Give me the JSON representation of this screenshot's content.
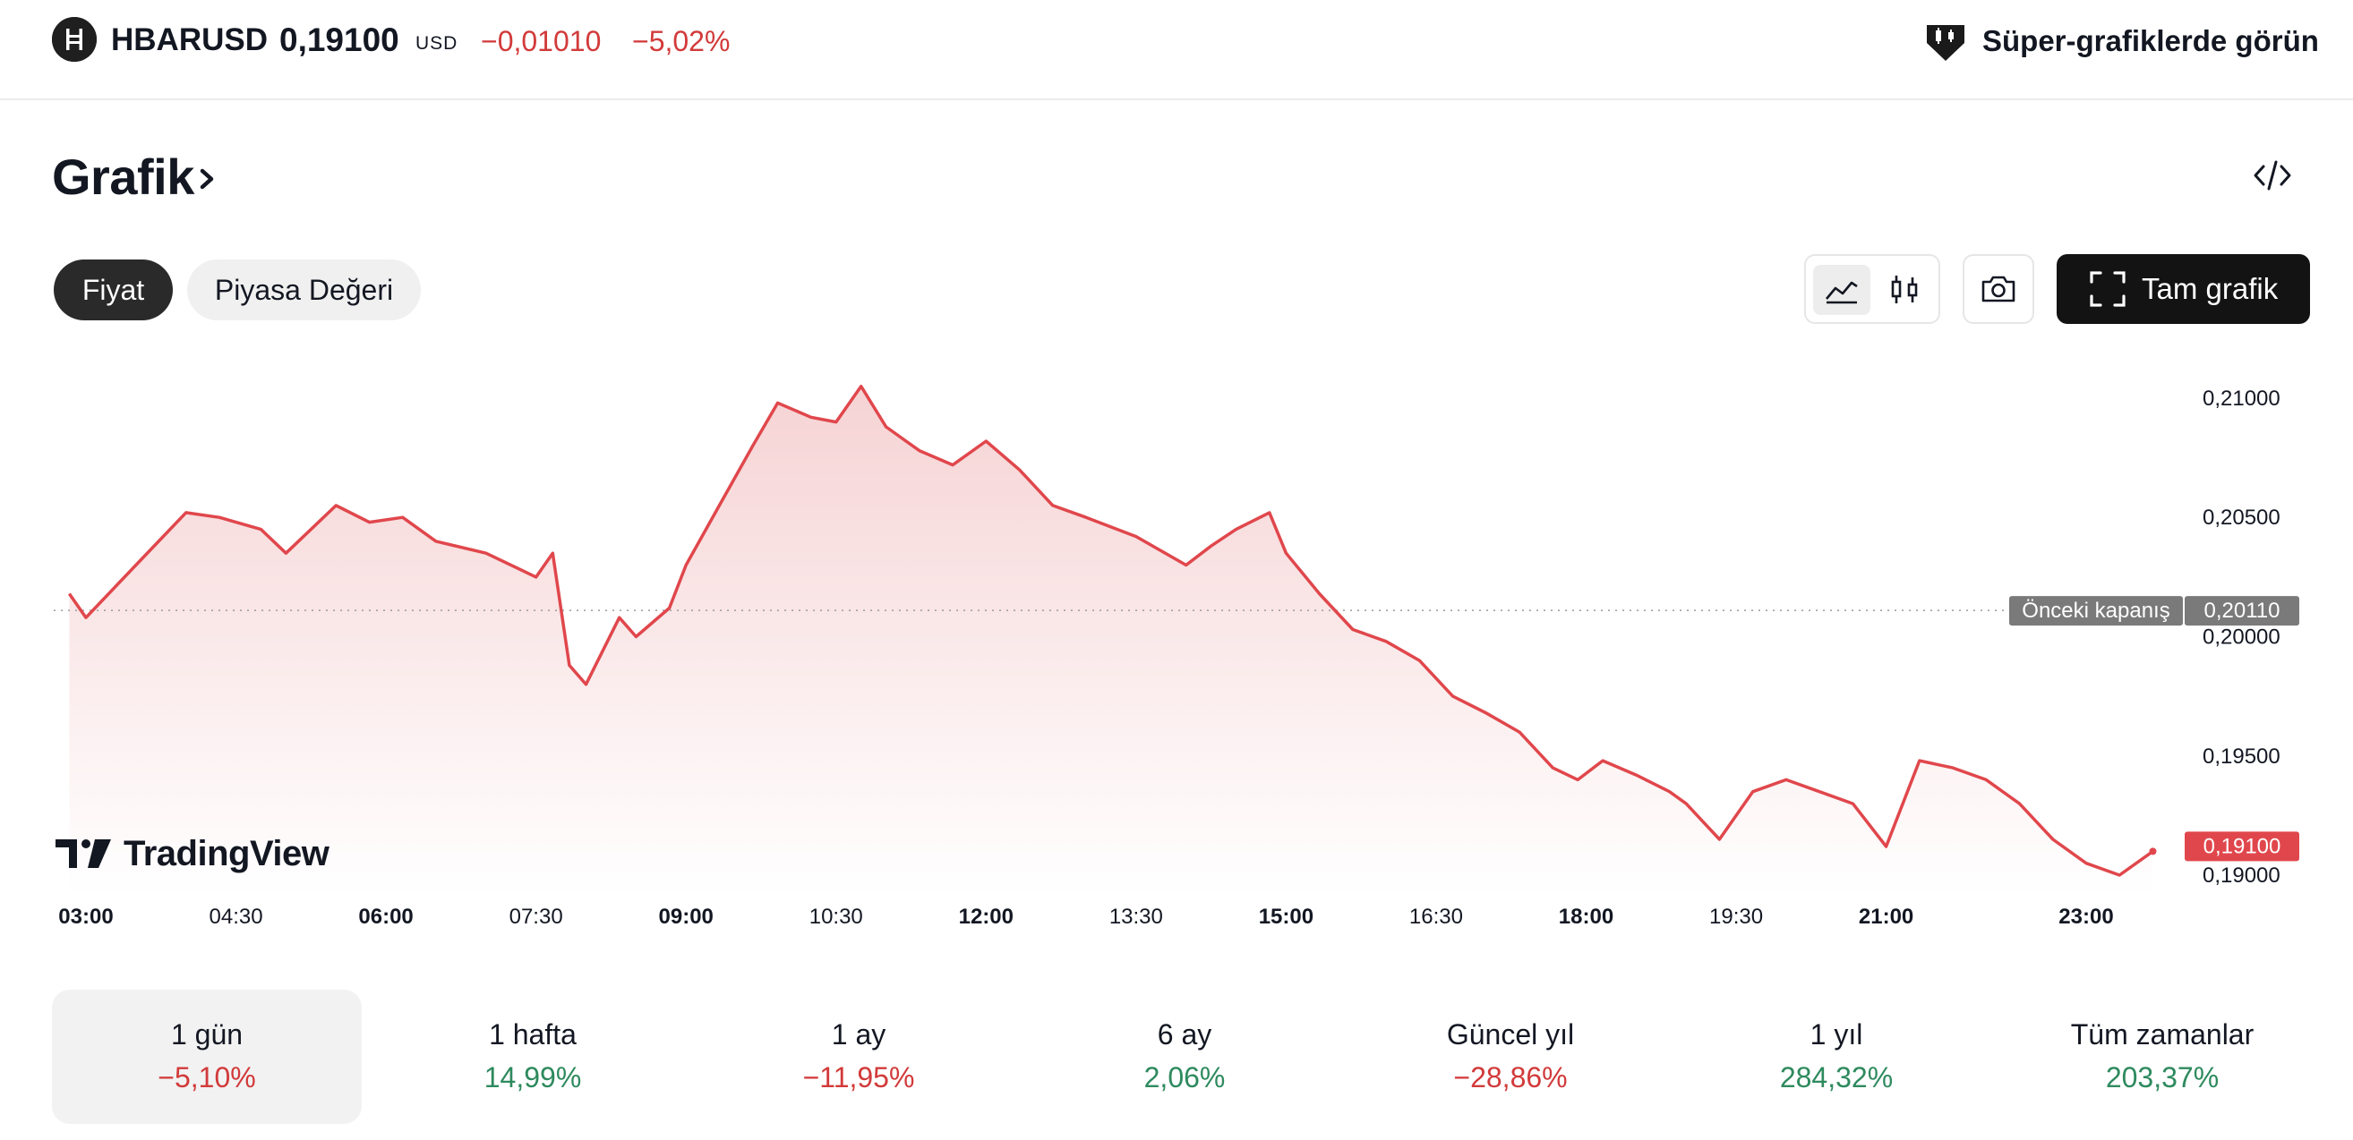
{
  "header": {
    "symbol": "HBARUSD",
    "price": "0,19100",
    "unit": "USD",
    "change_abs": "−0,01010",
    "change_pct": "−5,02%",
    "super_charts_label": "Süper-grafiklerde görün",
    "icons": {
      "symbol": "hbar-logo-icon",
      "super_charts": "super-charts-icon"
    }
  },
  "section": {
    "title": "Grafik",
    "icons": [
      "chevron-right-icon",
      "embed-code-icon"
    ]
  },
  "chips": {
    "price": "Fiyat",
    "market_cap": "Piyasa Değeri",
    "active": "Fiyat"
  },
  "toolbar": {
    "full_chart_label": "Tam grafik",
    "icons": [
      "line-chart-icon",
      "candlestick-icon",
      "camera-icon",
      "fullscreen-icon"
    ],
    "active_chart_type": "line"
  },
  "chart": {
    "watermark": "TradingView",
    "prev_close_label": "Önceki kapanış",
    "prev_close_value": "0,20110",
    "last_value": "0,19100",
    "price_ticks": [
      "0,21000",
      "0,20500",
      "0,20000",
      "0,19500",
      "0,19000"
    ],
    "time_ticks": [
      {
        "label": "03:00",
        "major": true
      },
      {
        "label": "04:30",
        "major": false
      },
      {
        "label": "06:00",
        "major": true
      },
      {
        "label": "07:30",
        "major": false
      },
      {
        "label": "09:00",
        "major": true
      },
      {
        "label": "10:30",
        "major": false
      },
      {
        "label": "12:00",
        "major": true
      },
      {
        "label": "13:30",
        "major": false
      },
      {
        "label": "15:00",
        "major": true
      },
      {
        "label": "16:30",
        "major": false
      },
      {
        "label": "18:00",
        "major": true
      },
      {
        "label": "19:30",
        "major": false
      },
      {
        "label": "21:00",
        "major": true
      },
      {
        "label": "23:00",
        "major": true
      }
    ]
  },
  "chart_data": {
    "type": "area",
    "ylim": [
      0.1888,
      0.2115
    ],
    "reference_line": 0.2011,
    "x": [
      "02:50",
      "03:00",
      "03:30",
      "04:00",
      "04:20",
      "04:45",
      "05:00",
      "05:30",
      "05:50",
      "06:10",
      "06:30",
      "07:00",
      "07:30",
      "07:40",
      "07:50",
      "08:00",
      "08:20",
      "08:30",
      "08:50",
      "09:00",
      "09:20",
      "09:40",
      "09:55",
      "10:15",
      "10:30",
      "10:45",
      "11:00",
      "11:20",
      "11:40",
      "12:00",
      "12:20",
      "12:40",
      "13:00",
      "13:30",
      "14:00",
      "14:15",
      "14:30",
      "14:50",
      "15:00",
      "15:20",
      "15:40",
      "16:00",
      "16:20",
      "16:40",
      "17:00",
      "17:20",
      "17:40",
      "17:55",
      "18:10",
      "18:30",
      "18:50",
      "19:00",
      "19:20",
      "19:40",
      "20:00",
      "20:20",
      "20:40",
      "21:00",
      "21:20",
      "21:40",
      "22:00",
      "22:20",
      "22:40",
      "23:00",
      "23:20",
      "23:40"
    ],
    "values": [
      0.2018,
      0.2008,
      0.203,
      0.2052,
      0.205,
      0.2045,
      0.2035,
      0.2055,
      0.2048,
      0.205,
      0.204,
      0.2035,
      0.2025,
      0.2035,
      0.1988,
      0.198,
      0.2008,
      0.2,
      0.2012,
      0.203,
      0.2055,
      0.208,
      0.2098,
      0.2092,
      0.209,
      0.2105,
      0.2088,
      0.2078,
      0.2072,
      0.2082,
      0.207,
      0.2055,
      0.205,
      0.2042,
      0.203,
      0.2038,
      0.2045,
      0.2052,
      0.2035,
      0.2018,
      0.2003,
      0.1998,
      0.199,
      0.1975,
      0.1968,
      0.196,
      0.1945,
      0.194,
      0.1948,
      0.1942,
      0.1935,
      0.193,
      0.1915,
      0.1935,
      0.194,
      0.1935,
      0.193,
      0.1912,
      0.1948,
      0.1945,
      0.194,
      0.193,
      0.1915,
      0.1905,
      0.19,
      0.191
    ],
    "series": [
      {
        "values_ref": "values",
        "color": "#e0474c"
      }
    ],
    "fill_color": "#f6d3d4",
    "xlabel": "",
    "ylabel": "",
    "grid": false
  },
  "ranges": [
    {
      "label": "1 gün",
      "value": "−5,10%",
      "sign": "neg",
      "active": true
    },
    {
      "label": "1 hafta",
      "value": "14,99%",
      "sign": "pos",
      "active": false
    },
    {
      "label": "1 ay",
      "value": "−11,95%",
      "sign": "neg",
      "active": false
    },
    {
      "label": "6 ay",
      "value": "2,06%",
      "sign": "pos",
      "active": false
    },
    {
      "label": "Güncel yıl",
      "value": "−28,86%",
      "sign": "neg",
      "active": false
    },
    {
      "label": "1 yıl",
      "value": "284,32%",
      "sign": "pos",
      "active": false
    },
    {
      "label": "Tüm zamanlar",
      "value": "203,37%",
      "sign": "pos",
      "active": false
    }
  ],
  "colors": {
    "negative": "#d23a3a",
    "positive": "#2e8a5e",
    "line": "#e0474c",
    "prev_close_bg": "#7a7a7a"
  }
}
